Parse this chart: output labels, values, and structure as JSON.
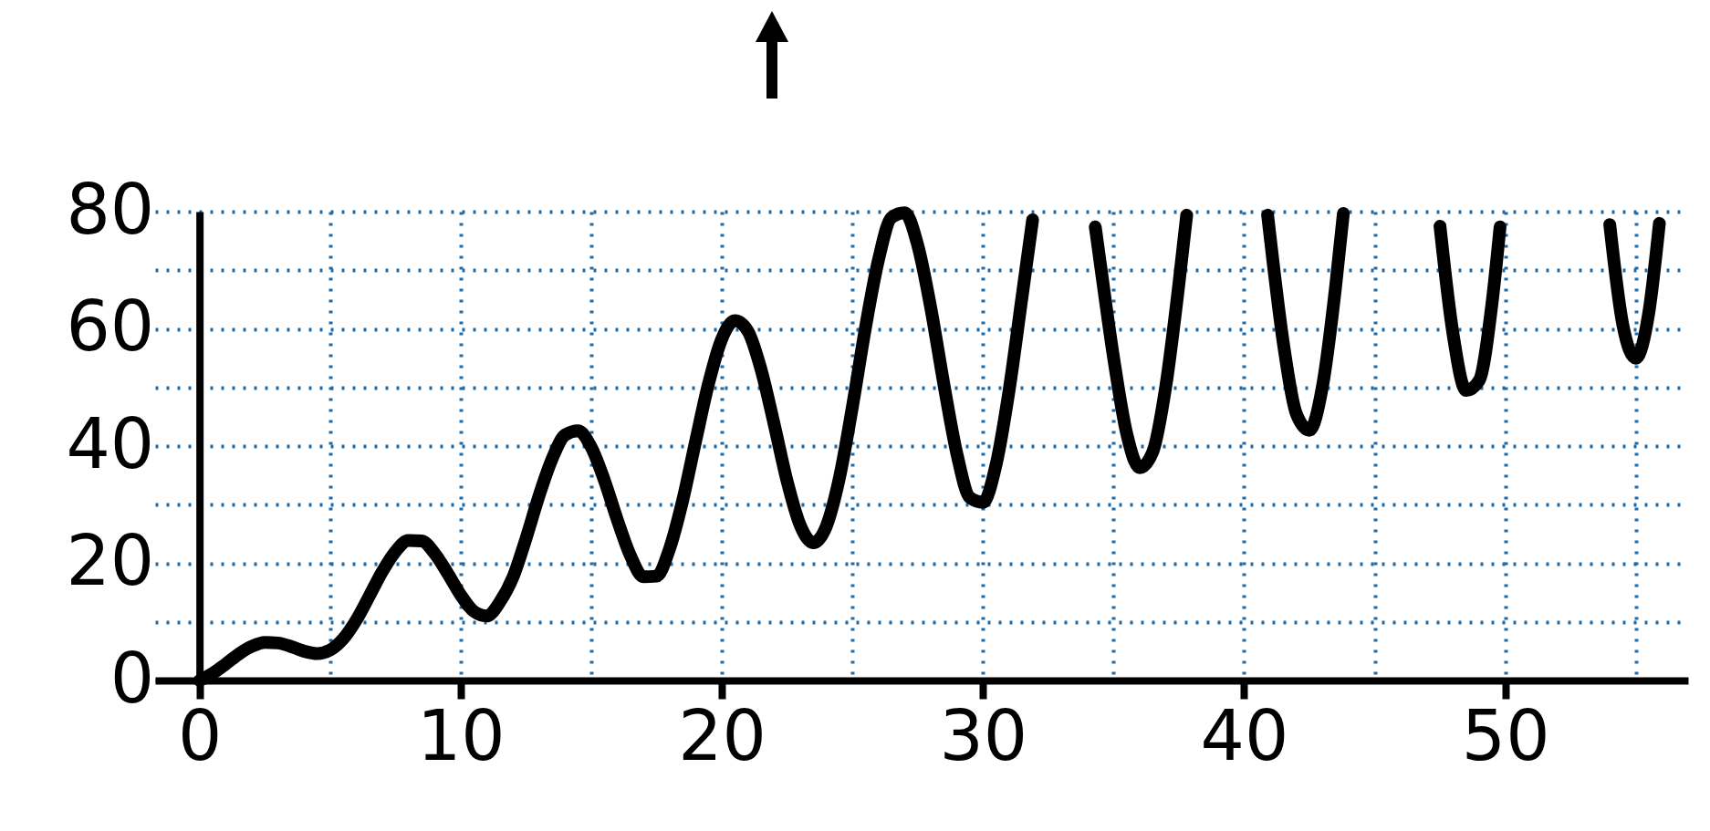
{
  "chart_data": {
    "type": "line",
    "x": [
      0,
      0.5,
      1,
      1.5,
      2,
      2.5,
      3,
      3.5,
      4,
      4.5,
      5,
      5.5,
      6,
      6.5,
      7,
      7.5,
      8,
      8.5,
      9,
      9.5,
      10,
      10.5,
      11,
      11.5,
      12,
      12.5,
      13,
      13.5,
      14,
      14.5,
      15,
      15.5,
      16,
      16.5,
      17,
      17.5,
      18,
      18.5,
      19,
      19.5,
      20,
      20.5,
      21,
      21.5,
      22,
      22.5,
      23,
      23.5,
      24,
      24.5,
      25,
      25.5,
      26,
      26.5,
      27,
      27.5,
      28,
      28.5,
      29,
      29.5,
      30,
      30.5,
      31,
      31.5,
      31.9,
      32,
      34.3,
      34.5,
      35,
      35.5,
      36,
      36.5,
      37,
      37.5,
      37.8,
      38,
      40.9,
      41,
      41.5,
      42,
      42.5,
      43,
      43.5,
      43.8,
      44,
      47.5,
      48,
      48.5,
      49,
      49.5,
      49.8,
      50,
      54,
      54.5,
      55,
      55.5,
      55.9
    ],
    "values": [
      0,
      1.2,
      2.8,
      4.5,
      5.8,
      6.5,
      6.4,
      5.8,
      5,
      4.6,
      5.2,
      7.1,
      10.3,
      14.4,
      18.6,
      22,
      23.9,
      23.8,
      21.7,
      18.3,
      14.6,
      11.8,
      11,
      13.4,
      17.6,
      24.2,
      31.5,
      37.8,
      41.9,
      42.6,
      39.8,
      34.2,
      27.4,
      21.3,
      17.7,
      17.8,
      22.5,
      30.7,
      40.9,
      50.8,
      58.3,
      61.4,
      59.6,
      53.1,
      43.8,
      34,
      26.5,
      23.5,
      26.3,
      34.5,
      46.7,
      60.2,
      71.8,
      79,
      79.8,
      74.3,
      63.6,
      50.6,
      38.7,
      31.2,
      30.4,
      36.8,
      49.5,
      65.6,
      78.6,
      null,
      77.4,
      70.9,
      55.1,
      42.2,
      36.3,
      39,
      50.2,
      67.6,
      79.4,
      null,
      79.4,
      75.5,
      57.6,
      45.5,
      42.7,
      50.2,
      67.1,
      79.7,
      null,
      77.5,
      59.1,
      49.5,
      51.2,
      64.7,
      77.4,
      null,
      77.8,
      60.7,
      55,
      62.9,
      78
    ],
    "color": "#000000",
    "line_style": "solid",
    "xlim": [
      -1.7,
      57
    ],
    "ylim": [
      0,
      80
    ],
    "xticks": [
      0,
      {
        "value": 5,
        "label": null
      },
      10,
      {
        "value": 15,
        "label": null
      },
      20,
      {
        "value": 25,
        "label": null
      },
      30,
      {
        "value": 35,
        "label": null
      },
      40,
      {
        "value": 45,
        "label": null
      },
      50,
      {
        "value": 55,
        "label": null
      }
    ],
    "yticks": [
      0,
      {
        "value": 10,
        "label": null
      },
      20,
      {
        "value": 30,
        "label": null
      },
      40,
      {
        "value": 50,
        "label": null
      },
      60,
      {
        "value": 70,
        "label": null
      },
      80
    ],
    "grid": true
  }
}
